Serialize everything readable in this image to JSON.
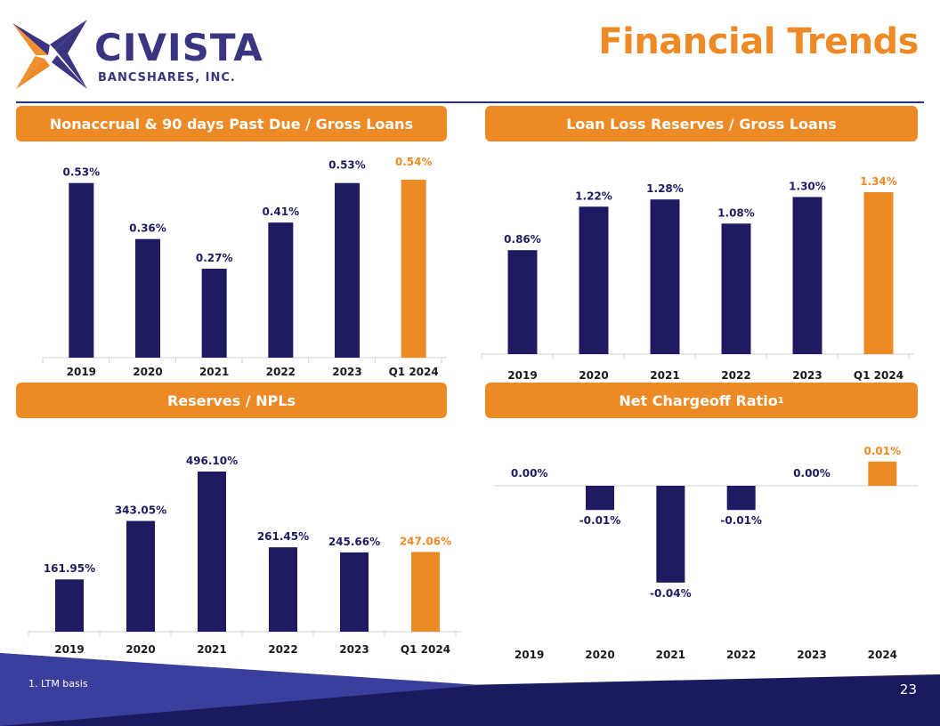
{
  "brand": {
    "name": "CIVISTA",
    "subtitle": "BANCSHARES, INC."
  },
  "page_title": "Financial Trends",
  "colors": {
    "navy": "#1f1b63",
    "orange": "#ee8a26",
    "title_orange": "#ee8a26",
    "footer_blue": "#3a3e9c",
    "footer_dark": "#1a1a5e"
  },
  "chart_data": [
    {
      "id": "nonaccrual",
      "type": "bar",
      "title": "Nonaccrual & 90 days Past Due / Gross Loans",
      "categories": [
        "2019",
        "2020",
        "2021",
        "2022",
        "2023",
        "Q1 2024"
      ],
      "values": [
        0.53,
        0.36,
        0.27,
        0.41,
        0.53,
        0.54
      ],
      "labels": [
        "0.53%",
        "0.36%",
        "0.27%",
        "0.41%",
        "0.53%",
        "0.54%"
      ],
      "highlight_last": true,
      "ylim": [
        0,
        0.54
      ]
    },
    {
      "id": "llr",
      "type": "bar",
      "title": "Loan Loss Reserves / Gross Loans",
      "categories": [
        "2019",
        "2020",
        "2021",
        "2022",
        "2023",
        "Q1 2024"
      ],
      "values": [
        0.86,
        1.22,
        1.28,
        1.08,
        1.3,
        1.34
      ],
      "labels": [
        "0.86%",
        "1.22%",
        "1.28%",
        "1.08%",
        "1.30%",
        "1.34%"
      ],
      "highlight_last": true,
      "ylim": [
        0,
        1.34
      ]
    },
    {
      "id": "reserves_npls",
      "type": "bar",
      "title": "Reserves / NPLs",
      "categories": [
        "2019",
        "2020",
        "2021",
        "2022",
        "2023",
        "Q1 2024"
      ],
      "values": [
        161.95,
        343.05,
        496.1,
        261.45,
        245.66,
        247.06
      ],
      "labels": [
        "161.95%",
        "343.05%",
        "496.10%",
        "261.45%",
        "245.66%",
        "247.06%"
      ],
      "highlight_last": true,
      "ylim": [
        0,
        496.1
      ]
    },
    {
      "id": "nco",
      "type": "bar",
      "title": "Net Chargeoff Ratio",
      "title_superscript": "1",
      "categories": [
        "2019",
        "2020",
        "2021",
        "2022",
        "2023",
        "2024"
      ],
      "values": [
        0.0,
        -0.01,
        -0.04,
        -0.01,
        0.0,
        0.01
      ],
      "labels": [
        "0.00%",
        "-0.01%",
        "-0.04%",
        "-0.01%",
        "0.00%",
        "0.01%"
      ],
      "highlight_last": true,
      "ylim": [
        -0.04,
        0.01
      ]
    }
  ],
  "footer": {
    "footnote": "1. LTM basis",
    "page_number": "23"
  }
}
